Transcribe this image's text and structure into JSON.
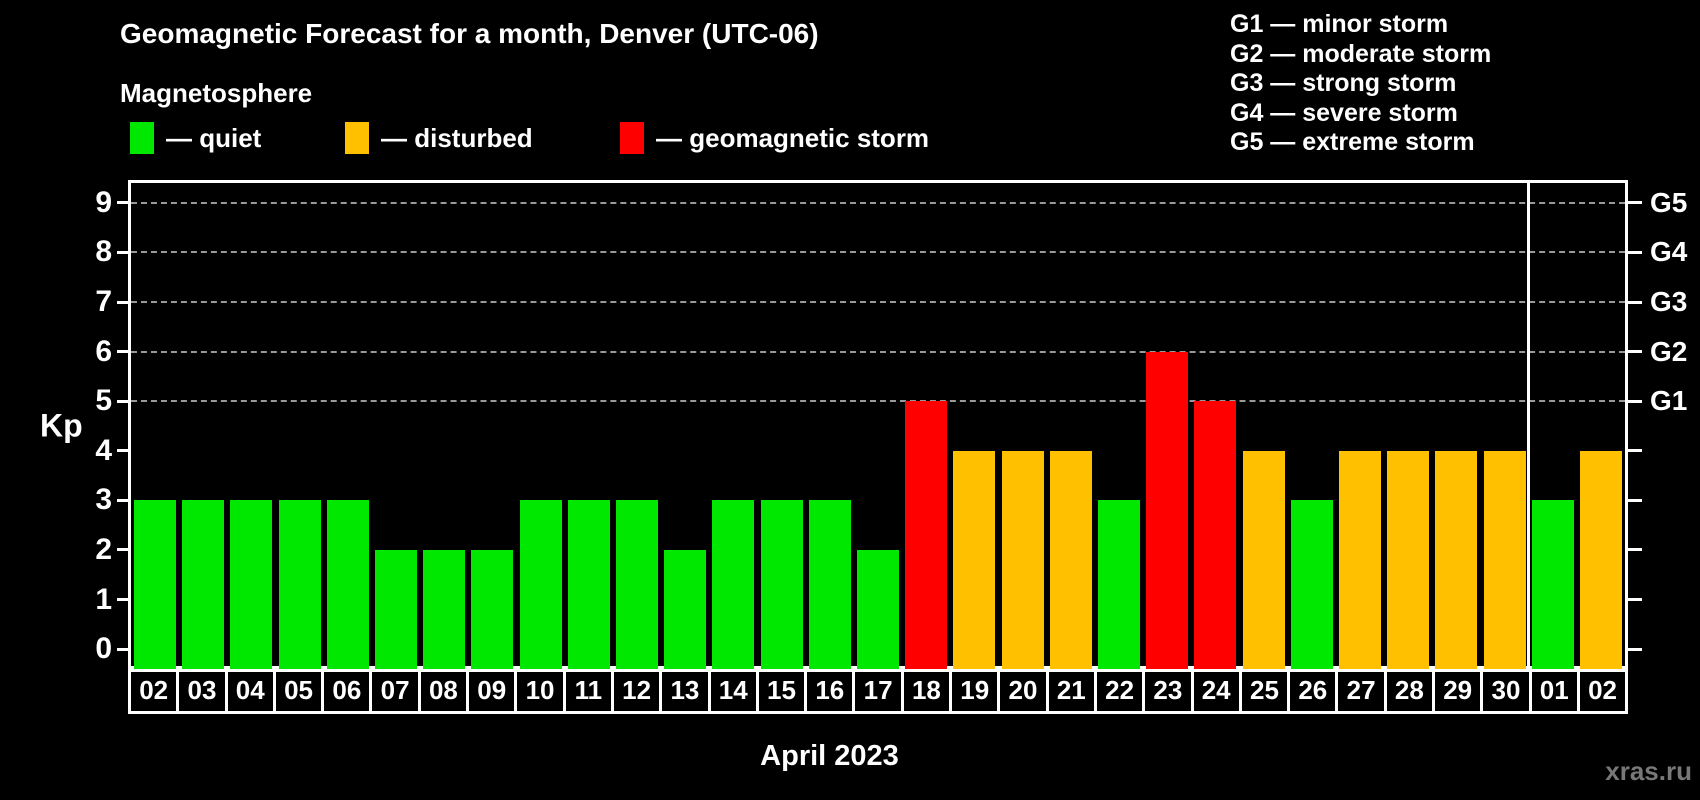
{
  "header": {
    "title": "Geomagnetic Forecast for a month, Denver (UTC-06)"
  },
  "magnetosphere_legend": {
    "title": "Magnetosphere",
    "items": [
      {
        "label": "— quiet",
        "color_key": "quiet"
      },
      {
        "label": "— disturbed",
        "color_key": "disturbed"
      },
      {
        "label": "— geomagnetic storm",
        "color_key": "storm"
      }
    ]
  },
  "g_scale_legend": {
    "items": [
      "G1 — minor storm",
      "G2 — moderate storm",
      "G3 — strong storm",
      "G4 — severe storm",
      "G5 — extreme storm"
    ]
  },
  "watermark": "xras.ru",
  "chart_data": {
    "type": "bar",
    "title": "Geomagnetic Forecast for a month, Denver (UTC-06)",
    "ylabel": "Kp",
    "x_month_label": "April 2023",
    "categories": [
      "02",
      "03",
      "04",
      "05",
      "06",
      "07",
      "08",
      "09",
      "10",
      "11",
      "12",
      "13",
      "14",
      "15",
      "16",
      "17",
      "18",
      "19",
      "20",
      "21",
      "22",
      "23",
      "24",
      "25",
      "26",
      "27",
      "28",
      "29",
      "30",
      "01",
      "02"
    ],
    "values": [
      3,
      3,
      3,
      3,
      3,
      2,
      2,
      2,
      3,
      3,
      3,
      2,
      3,
      3,
      3,
      2,
      5,
      4,
      4,
      4,
      3,
      6,
      5,
      4,
      3,
      4,
      4,
      4,
      4,
      3,
      4
    ],
    "ylim": [
      -0.4,
      9.4
    ],
    "yticks": [
      0,
      1,
      2,
      3,
      4,
      5,
      6,
      7,
      8,
      9
    ],
    "grid_levels": [
      5,
      6,
      7,
      8,
      9
    ],
    "right_axis_labels": {
      "5": "G1",
      "6": "G2",
      "7": "G3",
      "8": "G4",
      "9": "G5"
    },
    "month_boundary_index": 29,
    "thresholds": {
      "storm_min": 5,
      "disturbed_min": 4
    },
    "legend_position": "top",
    "grid": "dashed gray at G-levels only",
    "colors": {
      "quiet": "#00e800",
      "disturbed": "#ffc000",
      "storm": "#ff0000",
      "grid": "#999999",
      "axis": "#ffffff",
      "background": "#000000",
      "watermark": "#787878"
    }
  }
}
